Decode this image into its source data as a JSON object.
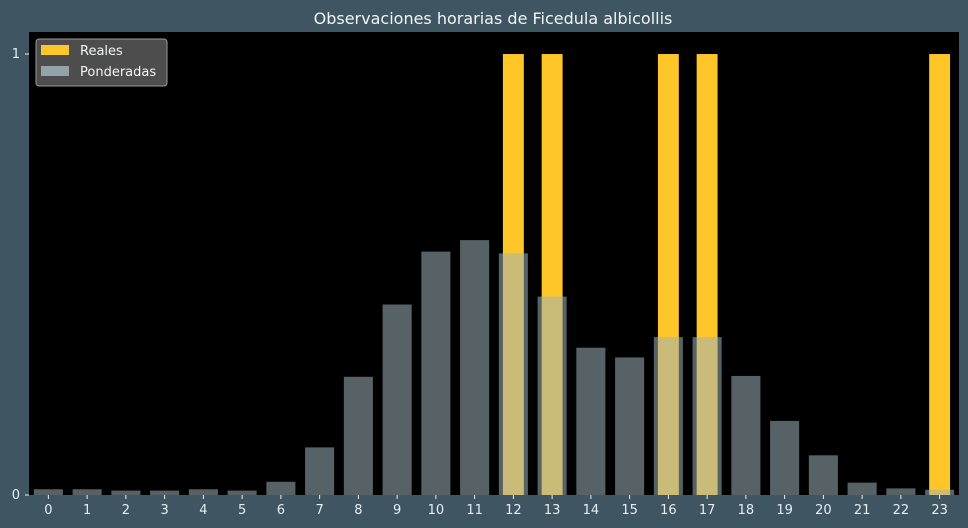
{
  "chart_data": {
    "type": "bar",
    "title": "Observaciones horarias de Ficedula albicollis",
    "xlabel": "",
    "ylabel": "",
    "categories": [
      "0",
      "1",
      "2",
      "3",
      "4",
      "5",
      "6",
      "7",
      "8",
      "9",
      "10",
      "11",
      "12",
      "13",
      "14",
      "15",
      "16",
      "17",
      "18",
      "19",
      "20",
      "21",
      "22",
      "23"
    ],
    "series": [
      {
        "name": "Reales",
        "color": "#ffc629",
        "values": [
          0,
          0,
          0,
          0,
          0,
          0,
          0,
          0,
          0,
          0,
          0,
          0,
          1,
          1,
          0,
          0,
          1,
          1,
          0,
          0,
          0,
          0,
          0,
          1
        ]
      },
      {
        "name": "Ponderadas",
        "color": "#9fb3ba",
        "values": [
          0.013,
          0.013,
          0.01,
          0.01,
          0.013,
          0.01,
          0.03,
          0.108,
          0.268,
          0.432,
          0.552,
          0.578,
          0.548,
          0.45,
          0.334,
          0.312,
          0.358,
          0.358,
          0.27,
          0.168,
          0.09,
          0.028,
          0.015,
          0.012
        ]
      }
    ],
    "yticks": [
      0,
      1
    ],
    "ylim": [
      0,
      1.05
    ],
    "legend_position": "top-left",
    "grid": false,
    "colors": {
      "background": "#3f5561",
      "plot_background": "#000000",
      "text": "#f2f5f7"
    }
  }
}
